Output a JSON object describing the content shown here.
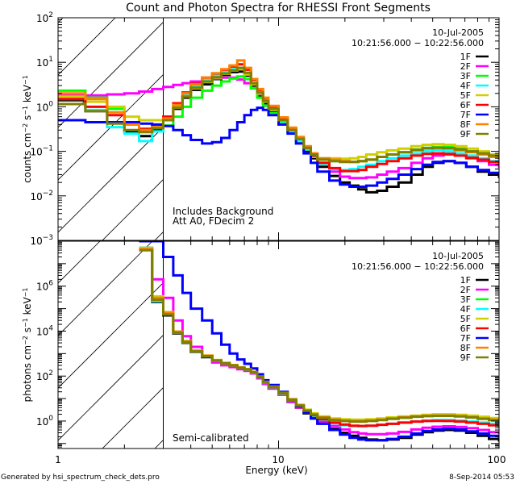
{
  "chart_data": [
    {
      "type": "line",
      "panel": "top",
      "title": "Count and Photon Spectra for RHESSI Front Segments",
      "xlabel": "Energy (keV)",
      "ylabel": "counts cm^-2 s^-1 keV^-1",
      "xscale": "log",
      "yscale": "log",
      "xlim": [
        1,
        100
      ],
      "ylim": [
        0.001,
        100
      ],
      "xticks": [
        "1",
        "10",
        "100"
      ],
      "yticks": [
        {
          "value": 100,
          "mantissa": "10",
          "exp": "2"
        },
        {
          "value": 10,
          "mantissa": "10",
          "exp": "1"
        },
        {
          "value": 1,
          "mantissa": "10",
          "exp": "0"
        },
        {
          "value": 0.1,
          "mantissa": "10",
          "exp": "−1"
        },
        {
          "value": 0.01,
          "mantissa": "10",
          "exp": "−2"
        },
        {
          "value": 0.001,
          "mantissa": "10",
          "exp": "−3"
        }
      ],
      "date": "10-Jul-2005",
      "time_range": "10:21:56.000 - 10:22:56.000",
      "annotations": [
        "Includes Background",
        "Att A0, FDecim 2"
      ],
      "threshold_energy": 3,
      "legend_position": "top-right",
      "x": [
        1,
        1.33,
        1.67,
        2.0,
        2.33,
        2.67,
        3.0,
        3.33,
        3.67,
        4.0,
        4.5,
        5.0,
        5.5,
        6.0,
        6.5,
        7.0,
        7.5,
        8.0,
        8.5,
        9.0,
        10,
        11,
        12,
        13,
        14,
        15,
        17,
        19,
        21,
        23,
        25,
        28,
        31,
        35,
        40,
        45,
        50,
        56,
        63,
        71,
        80,
        90,
        100
      ],
      "series": [
        {
          "name": "1F",
          "color": "#000000",
          "values": [
            1.4,
            0.8,
            0.45,
            0.28,
            0.22,
            0.3,
            0.55,
            0.9,
            1.6,
            2.4,
            3.2,
            4.2,
            5.2,
            6.0,
            6.2,
            5.0,
            3.0,
            1.8,
            1.2,
            0.8,
            0.45,
            0.28,
            0.17,
            0.1,
            0.07,
            0.045,
            0.028,
            0.02,
            0.017,
            0.014,
            0.012,
            0.013,
            0.016,
            0.02,
            0.03,
            0.045,
            0.055,
            0.06,
            0.055,
            0.045,
            0.035,
            0.03,
            0.025
          ]
        },
        {
          "name": "2F",
          "color": "#ff00ff",
          "values": [
            1.8,
            1.8,
            1.9,
            2.0,
            2.2,
            2.5,
            2.8,
            3.1,
            3.4,
            3.7,
            4.0,
            4.3,
            4.5,
            4.5,
            4.1,
            3.4,
            2.6,
            1.9,
            1.35,
            0.95,
            0.55,
            0.32,
            0.19,
            0.12,
            0.08,
            0.055,
            0.035,
            0.027,
            0.025,
            0.025,
            0.026,
            0.03,
            0.035,
            0.042,
            0.055,
            0.07,
            0.08,
            0.085,
            0.08,
            0.07,
            0.06,
            0.05,
            0.042
          ]
        },
        {
          "name": "3F",
          "color": "#00ff00",
          "values": [
            2.3,
            1.6,
            0.9,
            0.4,
            0.32,
            0.35,
            0.38,
            0.6,
            1.0,
            1.6,
            2.3,
            3.0,
            3.7,
            4.3,
            4.8,
            4.2,
            2.6,
            1.6,
            1.05,
            0.72,
            0.42,
            0.27,
            0.17,
            0.11,
            0.08,
            0.065,
            0.06,
            0.06,
            0.058,
            0.06,
            0.065,
            0.075,
            0.085,
            0.095,
            0.11,
            0.12,
            0.125,
            0.125,
            0.115,
            0.1,
            0.085,
            0.075,
            0.065
          ]
        },
        {
          "name": "4F",
          "color": "#00ffff",
          "values": [
            1.5,
            0.85,
            0.35,
            0.25,
            0.17,
            0.28,
            0.5,
            1.0,
            1.9,
            3.0,
            4.0,
            5.0,
            6.0,
            7.0,
            7.5,
            5.5,
            3.3,
            2.0,
            1.3,
            0.85,
            0.47,
            0.28,
            0.17,
            0.11,
            0.075,
            0.052,
            0.04,
            0.038,
            0.04,
            0.045,
            0.05,
            0.06,
            0.07,
            0.08,
            0.09,
            0.1,
            0.105,
            0.1,
            0.09,
            0.08,
            0.07,
            0.06,
            0.05
          ]
        },
        {
          "name": "5F",
          "color": "#d0d000",
          "values": [
            1.7,
            1.3,
            1.0,
            0.6,
            0.5,
            0.5,
            0.6,
            1.0,
            1.7,
            2.6,
            3.6,
            4.5,
            5.5,
            6.5,
            7.0,
            5.3,
            3.2,
            2.0,
            1.3,
            0.85,
            0.5,
            0.3,
            0.19,
            0.12,
            0.085,
            0.07,
            0.07,
            0.068,
            0.07,
            0.075,
            0.085,
            0.095,
            0.105,
            0.115,
            0.13,
            0.14,
            0.145,
            0.14,
            0.13,
            0.115,
            0.1,
            0.085,
            0.075
          ]
        },
        {
          "name": "6F",
          "color": "#ff0000",
          "values": [
            1.5,
            1.0,
            0.65,
            0.42,
            0.32,
            0.4,
            0.6,
            1.2,
            2.1,
            3.3,
            4.5,
            5.6,
            6.8,
            8.0,
            9.0,
            6.8,
            4.0,
            2.4,
            1.55,
            1.0,
            0.55,
            0.33,
            0.2,
            0.12,
            0.08,
            0.055,
            0.042,
            0.036,
            0.036,
            0.038,
            0.045,
            0.052,
            0.06,
            0.07,
            0.08,
            0.088,
            0.09,
            0.088,
            0.08,
            0.072,
            0.065,
            0.058,
            0.05
          ]
        },
        {
          "name": "7F",
          "color": "#0000ff",
          "values": [
            0.5,
            0.45,
            0.45,
            0.45,
            0.42,
            0.4,
            0.37,
            0.3,
            0.23,
            0.18,
            0.15,
            0.16,
            0.2,
            0.3,
            0.45,
            0.65,
            0.85,
            0.95,
            0.85,
            0.65,
            0.4,
            0.25,
            0.15,
            0.09,
            0.055,
            0.035,
            0.022,
            0.018,
            0.016,
            0.016,
            0.017,
            0.02,
            0.024,
            0.03,
            0.04,
            0.05,
            0.058,
            0.06,
            0.055,
            0.045,
            0.038,
            0.033,
            0.028
          ]
        },
        {
          "name": "8F",
          "color": "#ff8000",
          "values": [
            2.0,
            1.5,
            0.75,
            0.4,
            0.3,
            0.35,
            0.55,
            1.1,
            2.0,
            3.2,
            4.5,
            5.7,
            7.0,
            8.5,
            11.0,
            7.5,
            4.2,
            2.5,
            1.6,
            1.05,
            0.58,
            0.34,
            0.21,
            0.13,
            0.09,
            0.07,
            0.065,
            0.06,
            0.058,
            0.06,
            0.065,
            0.075,
            0.085,
            0.095,
            0.105,
            0.115,
            0.12,
            0.115,
            0.105,
            0.095,
            0.085,
            0.075,
            0.065
          ]
        },
        {
          "name": "9F",
          "color": "#808000",
          "values": [
            1.15,
            0.8,
            0.42,
            0.3,
            0.27,
            0.33,
            0.5,
            0.95,
            1.7,
            2.7,
            3.7,
            4.6,
            5.6,
            6.6,
            7.5,
            5.8,
            3.4,
            2.1,
            1.35,
            0.9,
            0.5,
            0.3,
            0.19,
            0.12,
            0.085,
            0.065,
            0.06,
            0.058,
            0.058,
            0.06,
            0.065,
            0.075,
            0.085,
            0.095,
            0.108,
            0.118,
            0.12,
            0.118,
            0.11,
            0.1,
            0.09,
            0.08,
            0.07
          ]
        }
      ]
    },
    {
      "type": "line",
      "panel": "bottom",
      "xlabel": "Energy (keV)",
      "ylabel": "photons cm^-2 s^-1 keV^-1",
      "xscale": "log",
      "yscale": "log",
      "xlim": [
        1,
        100
      ],
      "ylim": [
        0.06,
        100000000
      ],
      "xticks": [
        "1",
        "10",
        "100"
      ],
      "yticks": [
        {
          "value": 1000000,
          "mantissa": "10",
          "exp": "6"
        },
        {
          "value": 10000,
          "mantissa": "10",
          "exp": "4"
        },
        {
          "value": 100,
          "mantissa": "10",
          "exp": "2"
        },
        {
          "value": 1,
          "mantissa": "10",
          "exp": "0"
        }
      ],
      "date": "10-Jul-2005",
      "time_range": "10:21:56.000 - 10:22:56.000",
      "annotations": [
        "Semi-calibrated"
      ],
      "threshold_energy": 3,
      "legend_position": "top-right",
      "x": [
        2.33,
        2.67,
        3.0,
        3.33,
        3.67,
        4.0,
        4.5,
        5.0,
        5.5,
        6.0,
        6.5,
        7.0,
        7.5,
        8.0,
        8.5,
        9.0,
        10,
        11,
        12,
        13,
        14,
        15,
        17,
        19,
        21,
        23,
        25,
        28,
        31,
        35,
        40,
        45,
        50,
        56,
        63,
        71,
        80,
        90,
        100
      ],
      "series": [
        {
          "name": "1F",
          "color": "#000000",
          "values": [
            50000000,
            200000,
            50000,
            8000,
            3000,
            1200,
            700,
            450,
            350,
            280,
            220,
            180,
            130,
            80,
            45,
            28,
            15,
            7,
            4,
            2.2,
            1.3,
            0.8,
            0.45,
            0.3,
            0.22,
            0.18,
            0.15,
            0.14,
            0.15,
            0.18,
            0.25,
            0.32,
            0.38,
            0.4,
            0.38,
            0.3,
            0.22,
            0.16,
            0.12
          ]
        },
        {
          "name": "2F",
          "color": "#ff00ff",
          "values": [
            50000000,
            2000000,
            300000,
            30000,
            6000,
            2000,
            800,
            400,
            300,
            250,
            200,
            170,
            130,
            80,
            45,
            28,
            15,
            7,
            4,
            2.4,
            1.5,
            0.95,
            0.6,
            0.42,
            0.32,
            0.28,
            0.26,
            0.26,
            0.28,
            0.33,
            0.42,
            0.5,
            0.56,
            0.58,
            0.55,
            0.48,
            0.4,
            0.32,
            0.26
          ]
        },
        {
          "name": "3F",
          "color": "#00ff00",
          "values": [
            50000000,
            250000,
            60000,
            9000,
            3500,
            1300,
            800,
            500,
            380,
            300,
            240,
            200,
            150,
            95,
            55,
            34,
            18,
            9,
            5,
            3,
            2,
            1.5,
            1.2,
            1.1,
            1.05,
            1.05,
            1.1,
            1.2,
            1.35,
            1.5,
            1.65,
            1.8,
            1.85,
            1.85,
            1.75,
            1.6,
            1.4,
            1.2,
            1.05
          ]
        },
        {
          "name": "4F",
          "color": "#00ffff",
          "values": [
            50000000,
            220000,
            55000,
            8500,
            3200,
            1250,
            750,
            480,
            360,
            290,
            230,
            190,
            140,
            88,
            50,
            31,
            16,
            8,
            4.5,
            2.6,
            1.7,
            1.15,
            0.8,
            0.65,
            0.6,
            0.6,
            0.62,
            0.68,
            0.75,
            0.85,
            0.95,
            1.05,
            1.1,
            1.1,
            1.05,
            0.95,
            0.85,
            0.75,
            0.65
          ]
        },
        {
          "name": "5F",
          "color": "#d0d000",
          "values": [
            50000000,
            350000,
            70000,
            9500,
            3600,
            1350,
            820,
            520,
            390,
            310,
            245,
            205,
            155,
            98,
            57,
            35,
            19,
            9.5,
            5.3,
            3.2,
            2.2,
            1.6,
            1.3,
            1.2,
            1.15,
            1.15,
            1.2,
            1.3,
            1.45,
            1.6,
            1.75,
            1.9,
            2.0,
            2.0,
            1.9,
            1.75,
            1.55,
            1.35,
            1.15
          ]
        },
        {
          "name": "6F",
          "color": "#ff0000",
          "values": [
            40000000,
            280000,
            60000,
            9000,
            3400,
            1300,
            780,
            490,
            370,
            295,
            235,
            195,
            145,
            90,
            52,
            32,
            17,
            8.3,
            4.6,
            2.7,
            1.8,
            1.2,
            0.85,
            0.7,
            0.62,
            0.6,
            0.62,
            0.68,
            0.75,
            0.85,
            0.95,
            1.0,
            1.02,
            1.0,
            0.95,
            0.85,
            0.75,
            0.65,
            0.55
          ]
        },
        {
          "name": "7F",
          "color": "#0000ff",
          "values": [
            100000000,
            100000000,
            20000000,
            3000000,
            500000,
            100000,
            30000,
            8000,
            2500,
            1000,
            550,
            350,
            220,
            120,
            65,
            40,
            20,
            9,
            4.5,
            2.4,
            1.3,
            0.75,
            0.4,
            0.25,
            0.18,
            0.15,
            0.14,
            0.14,
            0.16,
            0.2,
            0.28,
            0.36,
            0.42,
            0.45,
            0.42,
            0.35,
            0.28,
            0.22,
            0.18
          ]
        },
        {
          "name": "8F",
          "color": "#ff8000",
          "values": [
            45000000,
            300000,
            65000,
            9500,
            3500,
            1350,
            800,
            510,
            380,
            305,
            240,
            200,
            150,
            96,
            55,
            34,
            18,
            9,
            5,
            3,
            2,
            1.45,
            1.15,
            1.05,
            1.0,
            1.0,
            1.05,
            1.15,
            1.3,
            1.45,
            1.6,
            1.7,
            1.75,
            1.75,
            1.65,
            1.5,
            1.3,
            1.15,
            1.0
          ]
        },
        {
          "name": "9F",
          "color": "#808000",
          "values": [
            40000000,
            250000,
            55000,
            8500,
            3300,
            1250,
            770,
            490,
            370,
            300,
            238,
            198,
            148,
            94,
            54,
            33,
            17.5,
            8.8,
            4.9,
            2.9,
            1.95,
            1.4,
            1.1,
            1.0,
            0.95,
            0.95,
            1.0,
            1.1,
            1.25,
            1.4,
            1.55,
            1.65,
            1.7,
            1.7,
            1.6,
            1.45,
            1.25,
            1.1,
            0.95
          ]
        }
      ]
    }
  ],
  "footer": {
    "generated_by": "Generated by hsi_spectrum_check_dets.pro",
    "timestamp": "8-Sep-2014 05:53"
  }
}
